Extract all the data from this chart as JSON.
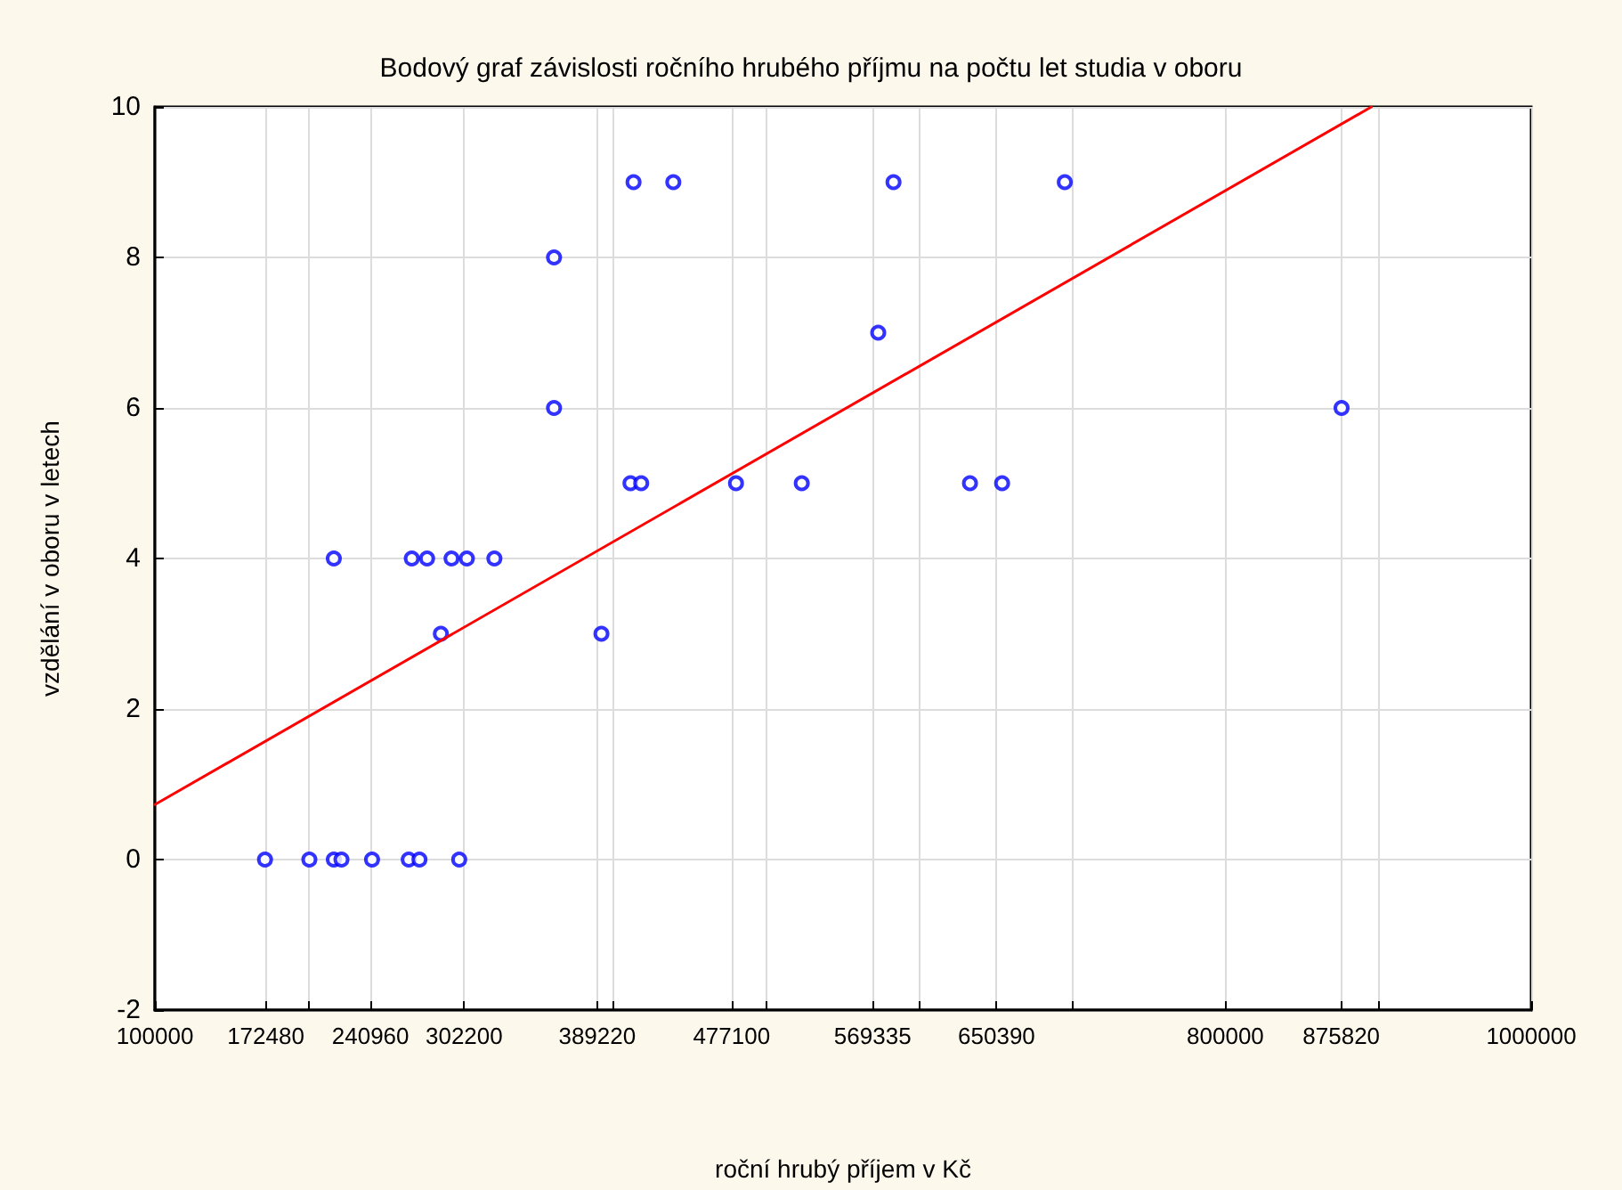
{
  "chart_data": {
    "type": "scatter",
    "title": "Bodový graf závislosti ročního hrubého příjmu na počtu let studia v oboru",
    "xlabel": "roční hrubý příjem v Kč",
    "ylabel": "vzdělání v oboru v letech",
    "xlim": [
      100000,
      1000000
    ],
    "ylim": [
      -2,
      10
    ],
    "xticks": [
      100000,
      172480,
      {
        "value": 200000,
        "label": null
      },
      240960,
      302200,
      {
        "value": 400000,
        "label": null
      },
      389220,
      477100,
      {
        "value": 500000,
        "label": null
      },
      569335,
      {
        "value": 600000,
        "label": null
      },
      650390,
      {
        "value": 700000,
        "label": null
      },
      800000,
      875820,
      {
        "value": 900000,
        "label": null
      },
      1000000
    ],
    "yticks": [
      -2,
      0,
      2,
      4,
      6,
      8,
      10
    ],
    "grid": true,
    "series": [
      {
        "type": "scatter",
        "color": "#0000ff",
        "marker": "circle",
        "x": [
          172000,
          201000,
          217000,
          222000,
          242000,
          266000,
          273000,
          299000,
          217000,
          268000,
          278000,
          294000,
          304000,
          322000,
          287000,
          392000,
          411000,
          418000,
          480000,
          523000,
          633000,
          654000,
          413000,
          439000,
          361000,
          361000,
          583000,
          695000,
          573000,
          876000
        ],
        "values": [
          0,
          0,
          0,
          0,
          0,
          0,
          0,
          0,
          4,
          4,
          4,
          4,
          4,
          4,
          3,
          3,
          5,
          5,
          5,
          5,
          5,
          5,
          9,
          9,
          8,
          6,
          9,
          9,
          7,
          6
        ]
      },
      {
        "type": "line",
        "color": "#ff0000",
        "marker": "none",
        "line_style": "solid",
        "x": [
          100000,
          895500
        ],
        "values": [
          0.73,
          10
        ]
      }
    ]
  }
}
